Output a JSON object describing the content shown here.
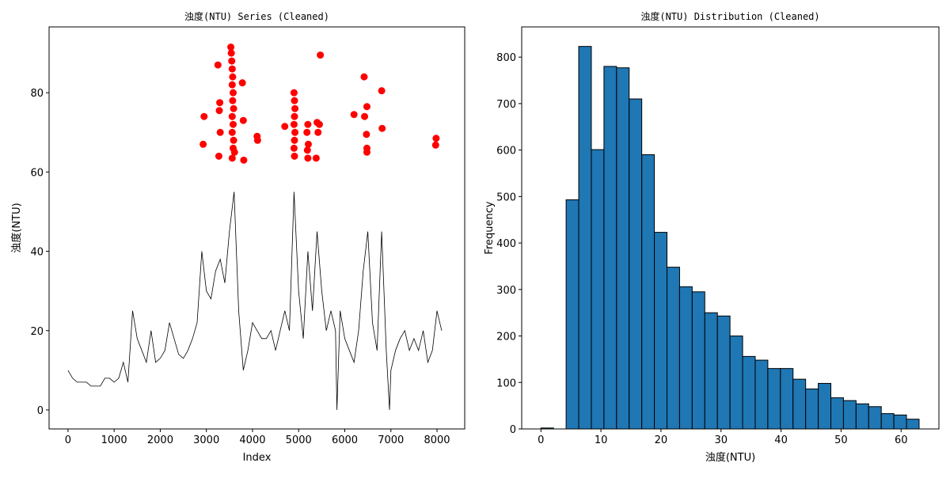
{
  "chart_data": [
    {
      "type": "line",
      "title": "浊度(NTU) Series (Cleaned)",
      "xlabel": "Index",
      "ylabel": "浊度(NTU)",
      "xlim": [
        -410,
        8600
      ],
      "ylim": [
        -4.8,
        96.6
      ],
      "xticks": [
        0,
        1000,
        2000,
        3000,
        4000,
        5000,
        6000,
        7000,
        8000
      ],
      "yticks": [
        0,
        20,
        40,
        60,
        80
      ],
      "series": [
        {
          "kind": "line",
          "color": "#000000",
          "x": [
            0,
            100,
            200,
            300,
            400,
            500,
            600,
            700,
            800,
            900,
            1000,
            1100,
            1200,
            1300,
            1400,
            1500,
            1600,
            1700,
            1800,
            1900,
            2000,
            2100,
            2200,
            2300,
            2400,
            2500,
            2600,
            2700,
            2800,
            2900,
            3000,
            3100,
            3200,
            3300,
            3400,
            3500,
            3600,
            3700,
            3800,
            3900,
            4000,
            4100,
            4200,
            4300,
            4400,
            4500,
            4600,
            4700,
            4800,
            4900,
            5000,
            5100,
            5200,
            5300,
            5400,
            5500,
            5600,
            5700,
            5800,
            5830,
            5900,
            6000,
            6100,
            6200,
            6300,
            6400,
            6500,
            6600,
            6700,
            6800,
            6900,
            6970,
            7000,
            7100,
            7200,
            7300,
            7400,
            7500,
            7600,
            7700,
            7800,
            7900,
            8000,
            8100
          ],
          "values": [
            10,
            8,
            7,
            7,
            7,
            6,
            6,
            6,
            8,
            8,
            7,
            8,
            12,
            7,
            25,
            18,
            15,
            12,
            20,
            12,
            13,
            15,
            22,
            18,
            14,
            13,
            15,
            18,
            22,
            40,
            30,
            28,
            35,
            38,
            32,
            45,
            55,
            25,
            10,
            15,
            22,
            20,
            18,
            18,
            20,
            15,
            20,
            25,
            20,
            55,
            30,
            18,
            40,
            25,
            45,
            30,
            20,
            25,
            20,
            0,
            25,
            18,
            15,
            12,
            20,
            35,
            45,
            22,
            15,
            45,
            15,
            0,
            10,
            15,
            18,
            20,
            15,
            18,
            15,
            20,
            12,
            15,
            25,
            20
          ]
        },
        {
          "kind": "scatter",
          "color": "#ff0000",
          "x": [
            2930,
            2950,
            3250,
            3270,
            3280,
            3290,
            3300,
            3530,
            3540,
            3550,
            3560,
            3570,
            3560,
            3580,
            3570,
            3590,
            3560,
            3580,
            3560,
            3590,
            3580,
            3610,
            3560,
            3800,
            3810,
            3780,
            4100,
            4110,
            4700,
            4900,
            4910,
            4920,
            4910,
            4900,
            4920,
            4910,
            4900,
            4910,
            5180,
            5200,
            5210,
            5190,
            5200,
            5380,
            5400,
            5420,
            5450,
            5470,
            6200,
            6420,
            6430,
            6480,
            6470,
            6480,
            6480,
            6800,
            6810,
            7980,
            7970
          ],
          "values": [
            67,
            74,
            87,
            64,
            75.5,
            77.5,
            70,
            91.5,
            90,
            88,
            86,
            84,
            82,
            80,
            78,
            76,
            74,
            72,
            70,
            68,
            66,
            65,
            63.5,
            73,
            63,
            82.5,
            69,
            68,
            71.5,
            80,
            78,
            76,
            74,
            72,
            70,
            68,
            66,
            64,
            70,
            72,
            67,
            65.5,
            63.5,
            63.5,
            72.5,
            70,
            72,
            89.5,
            74.5,
            84,
            74,
            76.5,
            69.5,
            66,
            65,
            80.5,
            71,
            68.5,
            66.8
          ]
        }
      ]
    },
    {
      "type": "histogram",
      "title": "浊度(NTU) Distribution (Cleaned)",
      "xlabel": "浊度(NTU)",
      "ylabel": "Frequency",
      "xlim": [
        -3.2,
        66.3
      ],
      "ylim": [
        0,
        865
      ],
      "xticks": [
        0,
        10,
        20,
        30,
        40,
        50,
        60
      ],
      "yticks": [
        0,
        100,
        200,
        300,
        400,
        500,
        600,
        700,
        800
      ],
      "color": "#1f77b4",
      "bins": [
        0,
        2.1,
        4.2,
        6.3,
        8.4,
        10.5,
        12.6,
        14.7,
        16.8,
        18.9,
        21,
        23.1,
        25.2,
        27.3,
        29.4,
        31.5,
        33.6,
        35.7,
        37.8,
        39.9,
        42,
        44.1,
        46.2,
        48.3,
        50.4,
        52.5,
        54.6,
        56.7,
        58.8,
        60.9,
        63
      ],
      "counts": [
        2,
        0,
        493,
        823,
        601,
        780,
        777,
        710,
        590,
        423,
        348,
        306,
        295,
        250,
        243,
        200,
        156,
        148,
        130,
        130,
        107,
        86,
        98,
        67,
        61,
        54,
        48,
        33,
        30,
        21
      ]
    }
  ]
}
